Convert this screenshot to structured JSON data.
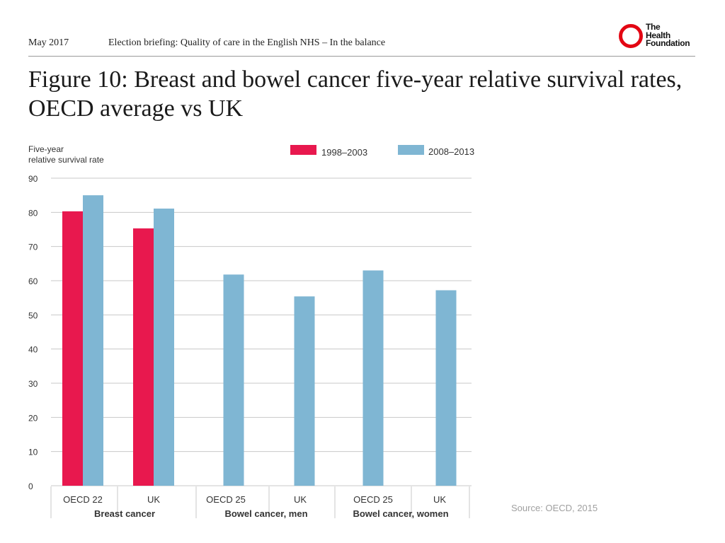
{
  "header": {
    "date": "May 2017",
    "briefing": "Election briefing: Quality of care in the English NHS – In the balance",
    "logo": {
      "line1": "The",
      "line2": "Health",
      "line3": "Foundation"
    }
  },
  "colors": {
    "series1": "#e8184e",
    "series2": "#7fb6d3",
    "grid": "#c8c8c8",
    "logo_red": "#e30613"
  },
  "source": "Source:  OECD, 2015",
  "chart_data": {
    "type": "bar",
    "title": "Figure 10: Breast and bowel cancer five-year relative survival rates, OECD average vs UK",
    "ylabel": [
      "Five-year",
      "relative survival rate"
    ],
    "ylim": [
      0,
      90
    ],
    "yticks": [
      0,
      10,
      20,
      30,
      40,
      50,
      60,
      70,
      80,
      90
    ],
    "categories": [
      "OECD 22",
      "UK",
      "OECD 25",
      "UK",
      "OECD 25",
      "UK"
    ],
    "groups": [
      {
        "label": "Breast cancer",
        "span": [
          0,
          1
        ]
      },
      {
        "label": "Bowel cancer, men",
        "span": [
          2,
          3
        ]
      },
      {
        "label": "Bowel cancer, women",
        "span": [
          4,
          5
        ]
      }
    ],
    "series": [
      {
        "name": "1998–2003",
        "values": [
          80.3,
          75.3,
          null,
          null,
          null,
          null
        ]
      },
      {
        "name": "2008–2013",
        "values": [
          85.0,
          81.1,
          61.8,
          55.4,
          63.0,
          57.2
        ]
      }
    ],
    "legend_position": "top"
  }
}
